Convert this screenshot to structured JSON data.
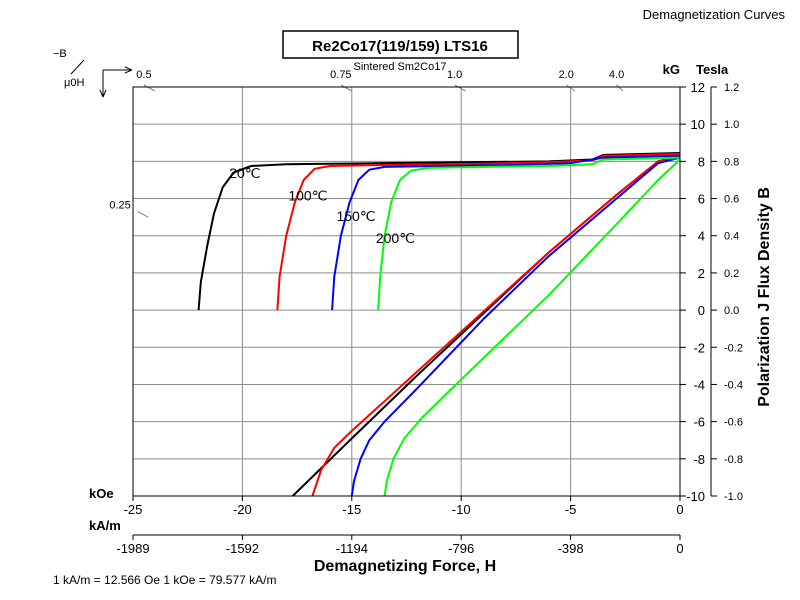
{
  "header": {
    "section": "Demagnetization Curves"
  },
  "chart_data": {
    "type": "line",
    "title": "Re2Co17(119/159) LTS16",
    "subtitle": "Sintered Sm2Co17",
    "xlabel": "Demagnetizing Force, H",
    "ylabel": "Polarization J Flux Density B",
    "x_unit_top": "kOe",
    "x_unit_bottom": "kA/m",
    "y_unit_left": "kG",
    "y_unit_right": "Tesla",
    "xlim": [
      -25,
      0
    ],
    "ylim": [
      -10,
      12
    ],
    "grid": true,
    "x_ticks_koe": [
      -25,
      -20,
      -15,
      -10,
      -5,
      0
    ],
    "x_ticks_kam": [
      "-1989",
      "-1592",
      "-1194",
      "-796",
      "-398",
      "0"
    ],
    "y_ticks_kg": [
      12,
      10,
      8,
      6,
      4,
      2,
      0,
      -2,
      -4,
      -6,
      -8,
      -10
    ],
    "y_ticks_tesla": [
      "1.2",
      "1.0",
      "0.8",
      "0.6",
      "0.4",
      "0.2",
      "0.0",
      "-0.2",
      "-0.4",
      "-0.6",
      "-0.8",
      "-1.0"
    ],
    "permeance_label_mu": "μ0H",
    "permeance_label_b": "−B",
    "permeance_coefficients": [
      {
        "label": "0.5",
        "h": -24.5,
        "h_end": -24.0
      },
      {
        "label": "0.75",
        "h": -15.5,
        "h_end": -15.0
      },
      {
        "label": "1.0",
        "h": -10.3,
        "h_end": -9.8
      },
      {
        "label": "2.0",
        "h": -5.2,
        "h_end": -4.8
      },
      {
        "label": "4.0",
        "h": -2.9,
        "h_end": -2.6
      },
      {
        "label": "0.25",
        "h": -24.8,
        "y": 5.3,
        "h_end": -24.3,
        "y_end": 5.0
      }
    ],
    "footnote": "1 kA/m = 12.566 Oe 1 kOe = 79.577 kA/m",
    "series": [
      {
        "name": "20℃",
        "color": "#000000",
        "label_at": [
          -20.6,
          7.1
        ],
        "j": [
          [
            -22.0,
            0
          ],
          [
            -21.9,
            1.5
          ],
          [
            -21.6,
            3.5
          ],
          [
            -21.3,
            5.2
          ],
          [
            -20.9,
            6.6
          ],
          [
            -20.4,
            7.4
          ],
          [
            -19.6,
            7.75
          ],
          [
            -18.0,
            7.85
          ],
          [
            -14.0,
            7.9
          ],
          [
            -10.0,
            7.95
          ],
          [
            -6.0,
            8.0
          ],
          [
            -4.0,
            8.1
          ],
          [
            -3.5,
            8.35
          ],
          [
            0,
            8.45
          ]
        ],
        "b": [
          [
            -17.7,
            -10
          ],
          [
            -15.0,
            -6.9
          ],
          [
            -12.0,
            -3.5
          ],
          [
            -9.0,
            -0.2
          ],
          [
            -6.0,
            3.1
          ],
          [
            -3.0,
            6.1
          ],
          [
            -1.0,
            8.0
          ],
          [
            0,
            8.3
          ]
        ]
      },
      {
        "name": "100℃",
        "color": "#ff0000",
        "label_at": [
          -17.9,
          5.9
        ],
        "j": [
          [
            -18.4,
            0
          ],
          [
            -18.3,
            1.8
          ],
          [
            -18.0,
            4.0
          ],
          [
            -17.6,
            5.8
          ],
          [
            -17.2,
            7.0
          ],
          [
            -16.7,
            7.6
          ],
          [
            -16.0,
            7.75
          ],
          [
            -14.0,
            7.8
          ],
          [
            -10.0,
            7.85
          ],
          [
            -6.0,
            7.95
          ],
          [
            -4.0,
            8.05
          ],
          [
            -3.5,
            8.3
          ],
          [
            0,
            8.4
          ]
        ],
        "b": [
          [
            -16.8,
            -10
          ],
          [
            -16.4,
            -8.6
          ],
          [
            -15.8,
            -7.4
          ],
          [
            -15.0,
            -6.5
          ],
          [
            -12.0,
            -3.3
          ],
          [
            -9.0,
            -0.1
          ],
          [
            -6.0,
            3.1
          ],
          [
            -3.0,
            6.1
          ],
          [
            -1.0,
            8.0
          ],
          [
            0,
            8.25
          ]
        ]
      },
      {
        "name": "150℃",
        "color": "#0000ff",
        "label_at": [
          -15.7,
          4.8
        ],
        "j": [
          [
            -15.9,
            0
          ],
          [
            -15.8,
            1.8
          ],
          [
            -15.5,
            4.0
          ],
          [
            -15.1,
            5.8
          ],
          [
            -14.7,
            7.0
          ],
          [
            -14.2,
            7.55
          ],
          [
            -13.5,
            7.7
          ],
          [
            -11.0,
            7.75
          ],
          [
            -8.0,
            7.8
          ],
          [
            -5.0,
            7.9
          ],
          [
            -3.5,
            8.2
          ],
          [
            0,
            8.3
          ]
        ],
        "b": [
          [
            -15.0,
            -10
          ],
          [
            -14.9,
            -9.2
          ],
          [
            -14.6,
            -8.0
          ],
          [
            -14.2,
            -7.0
          ],
          [
            -13.5,
            -6.0
          ],
          [
            -12.0,
            -4.2
          ],
          [
            -9.0,
            -0.5
          ],
          [
            -6.0,
            2.9
          ],
          [
            -3.0,
            5.9
          ],
          [
            -1.0,
            7.9
          ],
          [
            0,
            8.2
          ]
        ]
      },
      {
        "name": "200℃",
        "color": "#00ff00",
        "label_at": [
          -13.9,
          3.6
        ],
        "j": [
          [
            -13.8,
            0
          ],
          [
            -13.7,
            1.8
          ],
          [
            -13.5,
            4.0
          ],
          [
            -13.2,
            5.8
          ],
          [
            -12.8,
            7.0
          ],
          [
            -12.3,
            7.5
          ],
          [
            -11.5,
            7.65
          ],
          [
            -9.0,
            7.7
          ],
          [
            -6.0,
            7.75
          ],
          [
            -4.0,
            7.85
          ],
          [
            -3.5,
            8.1
          ],
          [
            0,
            8.2
          ]
        ],
        "b": [
          [
            -13.5,
            -10
          ],
          [
            -13.4,
            -9.2
          ],
          [
            -13.1,
            -8.0
          ],
          [
            -12.6,
            -6.9
          ],
          [
            -11.8,
            -5.8
          ],
          [
            -10.5,
            -4.3
          ],
          [
            -9.0,
            -2.6
          ],
          [
            -6.0,
            0.8
          ],
          [
            -3.0,
            4.5
          ],
          [
            -1.0,
            7.0
          ],
          [
            0,
            8.1
          ]
        ]
      }
    ]
  }
}
